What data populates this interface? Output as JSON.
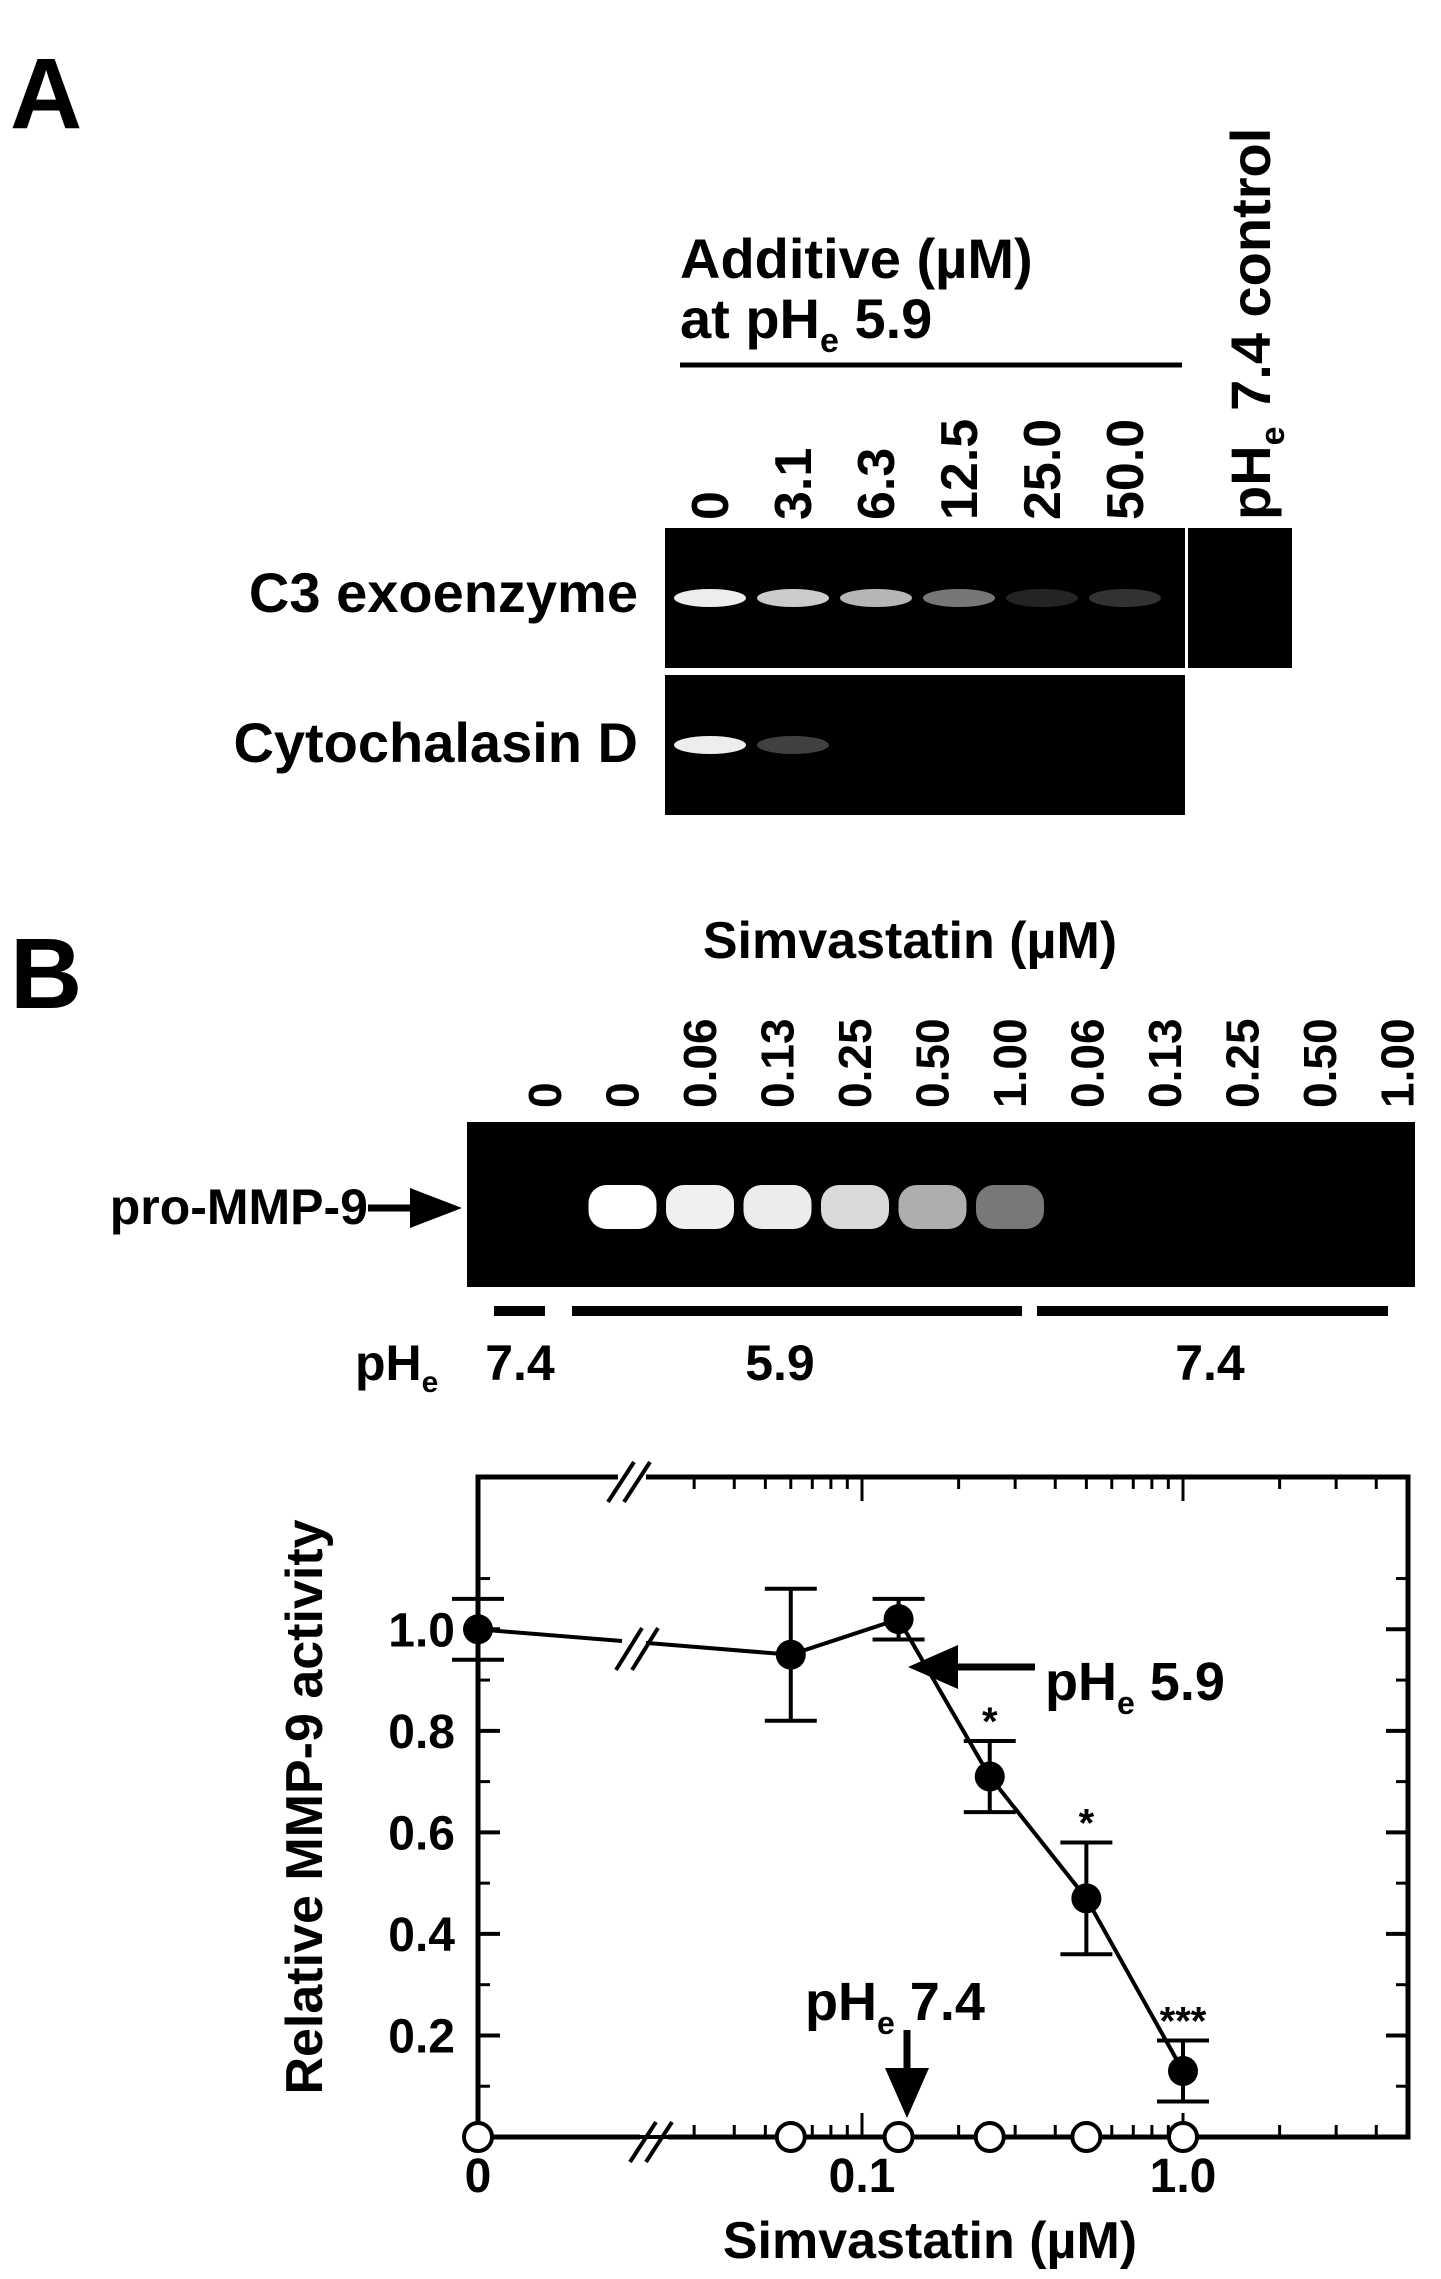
{
  "panel_a": {
    "letter": "A",
    "header_line1": "Additive (µM)",
    "header_line2_prefix": "at pH",
    "header_line2_sub": "e",
    "header_line2_suffix": " 5.9",
    "lanes": [
      "0",
      "3.1",
      "6.3",
      "12.5",
      "25.0",
      "50.0"
    ],
    "control_label_prefix": "pH",
    "control_label_sub": "e",
    "control_label_suffix": " 7.4 control",
    "rows": [
      {
        "label": "C3 exoenzyme",
        "band_intensities": [
          0.95,
          0.85,
          0.78,
          0.55,
          0.12,
          0.22
        ],
        "has_control": true
      },
      {
        "label": "Cytochalasin D",
        "band_intensities": [
          0.95,
          0.3,
          0,
          0,
          0,
          0
        ],
        "has_control": false
      }
    ]
  },
  "panel_b": {
    "letter": "B",
    "gel_title": "Simvastatin (µM)",
    "lanes": [
      "0",
      "0",
      "0.06",
      "0.13",
      "0.25",
      "0.50",
      "1.00",
      "0.06",
      "0.13",
      "0.25",
      "0.50",
      "1.00"
    ],
    "band_intensities": [
      0,
      1.0,
      0.95,
      0.93,
      0.85,
      0.68,
      0.42,
      0,
      0,
      0,
      0,
      0
    ],
    "marker_label": "pro-MMP-9",
    "ph_label_prefix": "pH",
    "ph_label_sub": "e",
    "ph_groups": [
      "7.4",
      "5.9",
      "7.4"
    ]
  },
  "chart_data": {
    "type": "line",
    "xlabel": "Simvastatin (µM)",
    "ylabel": "Relative MMP-9 activity",
    "xscale": "log (with axis break between 0 and 0.03)",
    "x_ticks": [
      "0",
      "0.1",
      "1.0"
    ],
    "y_ticks": [
      "0.2",
      "0.4",
      "0.6",
      "0.8",
      "1.0"
    ],
    "ylim": [
      0,
      1.3
    ],
    "series": [
      {
        "name": "pHe 5.9",
        "marker": "filled-circle",
        "x": [
          0,
          0.06,
          0.13,
          0.25,
          0.5,
          1.0
        ],
        "y": [
          1.0,
          0.95,
          1.02,
          0.71,
          0.47,
          0.13
        ],
        "error": [
          0.06,
          0.13,
          0.04,
          0.07,
          0.11,
          0.06
        ],
        "significance": [
          "",
          "",
          "",
          "*",
          "*",
          "***"
        ]
      },
      {
        "name": "pHe 7.4",
        "marker": "open-circle",
        "x": [
          0,
          0.06,
          0.13,
          0.25,
          0.5,
          1.0
        ],
        "y": [
          0,
          0,
          0,
          0,
          0,
          0
        ]
      }
    ],
    "annotations": [
      {
        "text_prefix": "pH",
        "text_sub": "e",
        "text_suffix": " 5.9",
        "points_to": "pHe 5.9 series"
      },
      {
        "text_prefix": "pH",
        "text_sub": "e",
        "text_suffix": " 7.4",
        "points_to": "pHe 7.4 series"
      }
    ]
  }
}
